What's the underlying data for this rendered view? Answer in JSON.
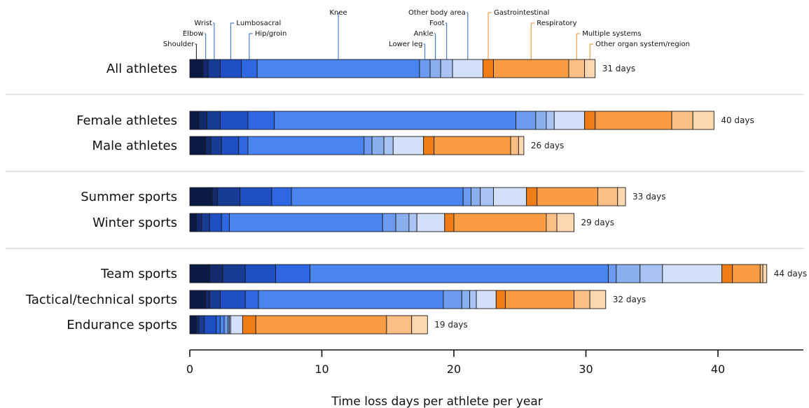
{
  "chart_data": {
    "type": "bar",
    "orientation": "horizontal",
    "stacked": true,
    "xlabel": "Time loss days per athlete per year",
    "xlim": [
      0,
      46
    ],
    "xticks": [
      0,
      10,
      20,
      30,
      40
    ],
    "days_suffix": "days",
    "segments": [
      {
        "name": "Shoulder",
        "color": "#0a1a44"
      },
      {
        "name": "Elbow",
        "color": "#12296b"
      },
      {
        "name": "Wrist",
        "color": "#183b95"
      },
      {
        "name": "Lumbosacral",
        "color": "#1f4fc2"
      },
      {
        "name": "Hip/groin",
        "color": "#2f66e2"
      },
      {
        "name": "Knee",
        "color": "#4a84ee"
      },
      {
        "name": "Lower leg",
        "color": "#6c9af0"
      },
      {
        "name": "Ankle",
        "color": "#8aafee"
      },
      {
        "name": "Foot",
        "color": "#a9c4f4"
      },
      {
        "name": "Other body area",
        "color": "#d2e0fb"
      },
      {
        "name": "Gastrointestinal",
        "color": "#f07c16"
      },
      {
        "name": "Respiratory",
        "color": "#f99c44"
      },
      {
        "name": "Multiple systems",
        "color": "#fbbe84"
      },
      {
        "name": "Other organ system/region",
        "color": "#fdd7af"
      }
    ],
    "groups": [
      {
        "rows": [
          {
            "label": "All athletes",
            "total_label": "31 days",
            "values": [
              1.0,
              0.4,
              0.9,
              1.6,
              1.2,
              12.3,
              0.8,
              0.8,
              0.9,
              2.3,
              0.8,
              5.7,
              1.2,
              0.8
            ]
          }
        ]
      },
      {
        "rows": [
          {
            "label": "Female athletes",
            "total_label": "40 days",
            "values": [
              0.7,
              0.6,
              1.0,
              2.1,
              2.0,
              18.3,
              1.5,
              0.8,
              0.6,
              2.3,
              0.8,
              5.8,
              1.6,
              1.6
            ]
          },
          {
            "label": "Male athletes",
            "total_label": "26 days",
            "values": [
              1.2,
              0.4,
              0.8,
              1.3,
              0.7,
              8.8,
              0.6,
              0.9,
              0.7,
              2.3,
              0.8,
              5.8,
              0.6,
              0.4
            ]
          }
        ]
      },
      {
        "rows": [
          {
            "label": "Summer sports",
            "total_label": "33 days",
            "values": [
              1.7,
              0.4,
              1.7,
              2.4,
              1.5,
              13.0,
              0.6,
              0.7,
              1.0,
              2.5,
              0.8,
              4.6,
              1.5,
              0.6
            ]
          },
          {
            "label": "Winter sports",
            "total_label": "29 days",
            "values": [
              0.5,
              0.4,
              0.6,
              0.9,
              0.6,
              11.6,
              1.0,
              1.0,
              0.6,
              2.1,
              0.7,
              7.0,
              0.8,
              1.3
            ]
          }
        ]
      },
      {
        "rows": [
          {
            "label": "Team sports",
            "total_label": "44 days",
            "values": [
              1.5,
              1.0,
              1.7,
              2.3,
              2.6,
              22.6,
              0.6,
              1.8,
              1.7,
              4.5,
              0.8,
              2.1,
              0.2,
              0.3
            ]
          },
          {
            "label": "Tactical/technical sports",
            "total_label": "32 days",
            "values": [
              1.2,
              0.3,
              0.8,
              1.9,
              1.0,
              14.0,
              1.4,
              0.6,
              0.5,
              1.5,
              0.7,
              5.2,
              1.2,
              1.2
            ]
          },
          {
            "label": "Endurance sports",
            "total_label": "19 days",
            "values": [
              0.5,
              0.2,
              0.4,
              0.9,
              0.3,
              0.3,
              0.3,
              0.1,
              0.1,
              0.9,
              1.0,
              9.9,
              1.9,
              1.2
            ]
          }
        ]
      }
    ]
  }
}
